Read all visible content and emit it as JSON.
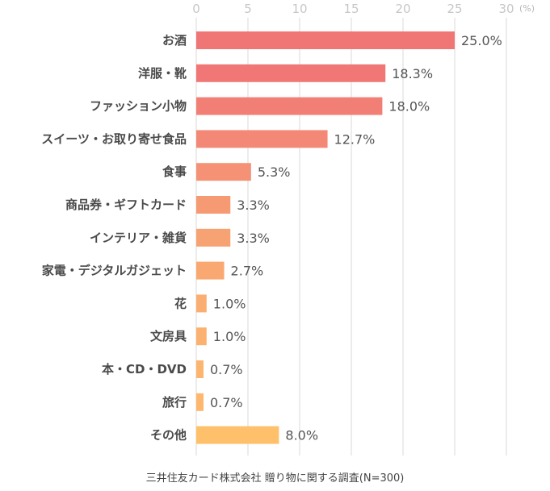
{
  "chart_data": {
    "type": "bar",
    "orientation": "horizontal",
    "unit": "(%)",
    "categories": [
      "お酒",
      "洋服・靴",
      "ファッション小物",
      "スイーツ・お取り寄せ食品",
      "食事",
      "商品券・ギフトカード",
      "インテリア・雑貨",
      "家電・デジタルガジェット",
      "花",
      "文房具",
      "本・CD・DVD",
      "旅行",
      "その他"
    ],
    "values": [
      25.0,
      18.3,
      18.0,
      12.7,
      5.3,
      3.3,
      3.3,
      2.7,
      1.0,
      1.0,
      0.7,
      0.7,
      8.0
    ],
    "value_labels": [
      "25.0%",
      "18.3%",
      "18.0%",
      "12.7%",
      "5.3%",
      "3.3%",
      "3.3%",
      "2.7%",
      "1.0%",
      "1.0%",
      "0.7%",
      "0.7%",
      "8.0%"
    ],
    "xlim": [
      0,
      30
    ],
    "xticks": [
      0,
      5,
      10,
      15,
      20,
      25,
      30
    ],
    "grid": true,
    "colors": [
      "#f07575",
      "#f07775",
      "#f27f76",
      "#f38877",
      "#f59276",
      "#f59a73",
      "#f7a273",
      "#f9a872",
      "#faae71",
      "#fbb170",
      "#fcb56f",
      "#fdb86e",
      "#fec06b"
    ]
  },
  "source": "三井住友カード株式会社 贈り物に関する調査(N=300)"
}
